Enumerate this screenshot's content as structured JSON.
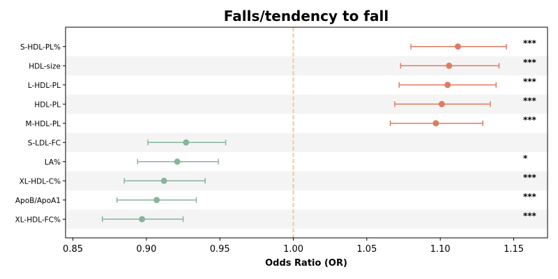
{
  "chart_data": {
    "type": "forest",
    "title": "Falls/tendency to fall",
    "xlabel": "Odds Ratio (OR)",
    "ylabel": "",
    "xlim": [
      0.845,
      1.173
    ],
    "xticks": [
      "0.85",
      "0.90",
      "0.95",
      "1.00",
      "1.05",
      "1.10",
      "1.15"
    ],
    "reference_line": 1.0,
    "grid": false,
    "colors": {
      "increase": "#e07b5f",
      "decrease": "#86b59b",
      "reference": "#f5c98a",
      "band": "#f4f4f4"
    },
    "rows": [
      {
        "label": "S-HDL-PL%",
        "or": 1.112,
        "ci_low": 1.08,
        "ci_high": 1.145,
        "sig": "***",
        "direction": "increase"
      },
      {
        "label": "HDL-size",
        "or": 1.106,
        "ci_low": 1.073,
        "ci_high": 1.14,
        "sig": "***",
        "direction": "increase"
      },
      {
        "label": "L-HDL-PL",
        "or": 1.105,
        "ci_low": 1.072,
        "ci_high": 1.138,
        "sig": "***",
        "direction": "increase"
      },
      {
        "label": "HDL-PL",
        "or": 1.101,
        "ci_low": 1.069,
        "ci_high": 1.134,
        "sig": "***",
        "direction": "increase"
      },
      {
        "label": "M-HDL-PL",
        "or": 1.097,
        "ci_low": 1.066,
        "ci_high": 1.129,
        "sig": "***",
        "direction": "increase"
      },
      {
        "label": "S-LDL-FC",
        "or": 0.927,
        "ci_low": 0.901,
        "ci_high": 0.954,
        "sig": "",
        "direction": "decrease"
      },
      {
        "label": "LA%",
        "or": 0.921,
        "ci_low": 0.894,
        "ci_high": 0.949,
        "sig": "*",
        "direction": "decrease"
      },
      {
        "label": "XL-HDL-C%",
        "or": 0.912,
        "ci_low": 0.885,
        "ci_high": 0.94,
        "sig": "***",
        "direction": "decrease"
      },
      {
        "label": "ApoB/ApoA1",
        "or": 0.907,
        "ci_low": 0.88,
        "ci_high": 0.934,
        "sig": "***",
        "direction": "decrease"
      },
      {
        "label": "XL-HDL-FC%",
        "or": 0.897,
        "ci_low": 0.87,
        "ci_high": 0.925,
        "sig": "***",
        "direction": "decrease"
      }
    ]
  }
}
